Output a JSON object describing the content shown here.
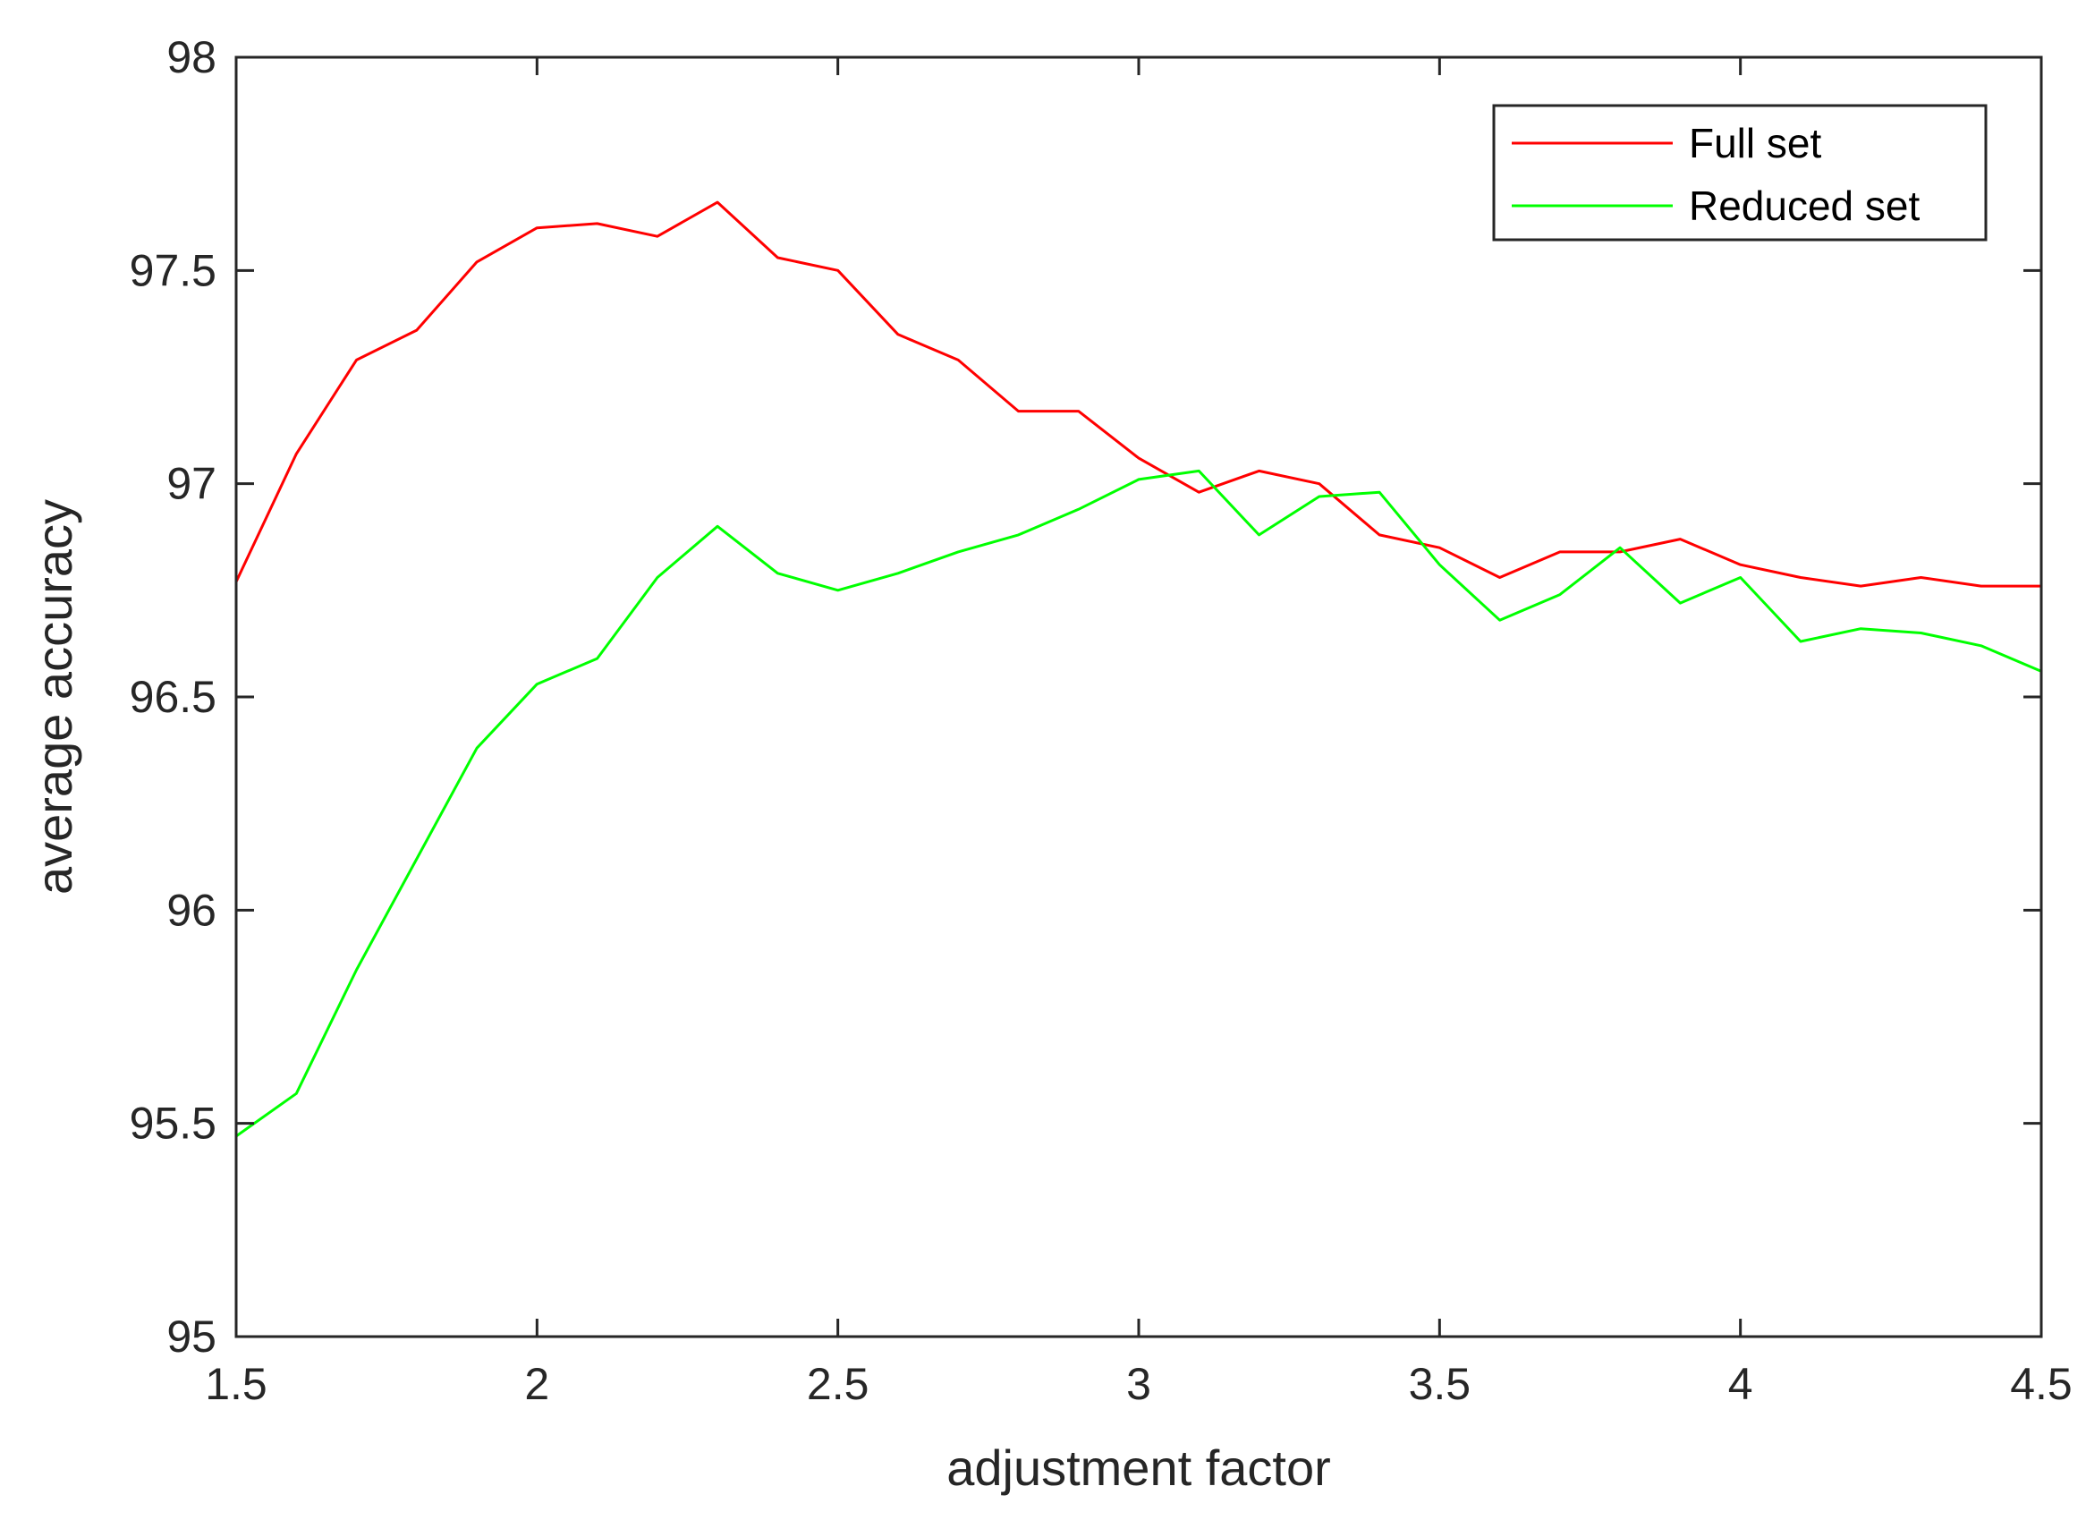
{
  "chart_data": {
    "type": "line",
    "xlabel": "adjustment factor",
    "ylabel": "average accuracy",
    "xlim": [
      1.5,
      4.5
    ],
    "ylim": [
      95,
      98
    ],
    "xticks": [
      1.5,
      2,
      2.5,
      3,
      3.5,
      4,
      4.5
    ],
    "yticks": [
      95,
      95.5,
      96,
      96.5,
      97,
      97.5,
      98
    ],
    "xtick_labels": [
      "1.5",
      "2",
      "2.5",
      "3",
      "3.5",
      "4",
      "4.5"
    ],
    "ytick_labels": [
      "95",
      "95.5",
      "96",
      "96.5",
      "97",
      "97.5",
      "98"
    ],
    "grid": false,
    "legend_position": "top-right",
    "x": [
      1.5,
      1.6,
      1.7,
      1.8,
      1.9,
      2.0,
      2.1,
      2.2,
      2.3,
      2.4,
      2.5,
      2.6,
      2.7,
      2.8,
      2.9,
      3.0,
      3.1,
      3.2,
      3.3,
      3.4,
      3.5,
      3.6,
      3.7,
      3.8,
      3.9,
      4.0,
      4.1,
      4.2,
      4.3,
      4.4,
      4.5
    ],
    "series": [
      {
        "name": "Full set",
        "color": "#ff0000",
        "values": [
          96.77,
          97.07,
          97.29,
          97.36,
          97.52,
          97.6,
          97.61,
          97.58,
          97.66,
          97.53,
          97.5,
          97.35,
          97.29,
          97.17,
          97.17,
          97.06,
          96.98,
          97.03,
          97.0,
          96.88,
          96.85,
          96.78,
          96.84,
          96.84,
          96.87,
          96.81,
          96.78,
          96.76,
          96.78,
          96.76,
          96.76
        ]
      },
      {
        "name": "Reduced set",
        "color": "#00ff00",
        "values": [
          95.47,
          95.57,
          95.86,
          96.12,
          96.38,
          96.53,
          96.59,
          96.78,
          96.9,
          96.79,
          96.75,
          96.79,
          96.84,
          96.88,
          96.94,
          97.01,
          97.03,
          96.88,
          96.97,
          96.98,
          96.81,
          96.68,
          96.74,
          96.85,
          96.72,
          96.78,
          96.63,
          96.66,
          96.65,
          96.62,
          96.56
        ]
      }
    ]
  }
}
